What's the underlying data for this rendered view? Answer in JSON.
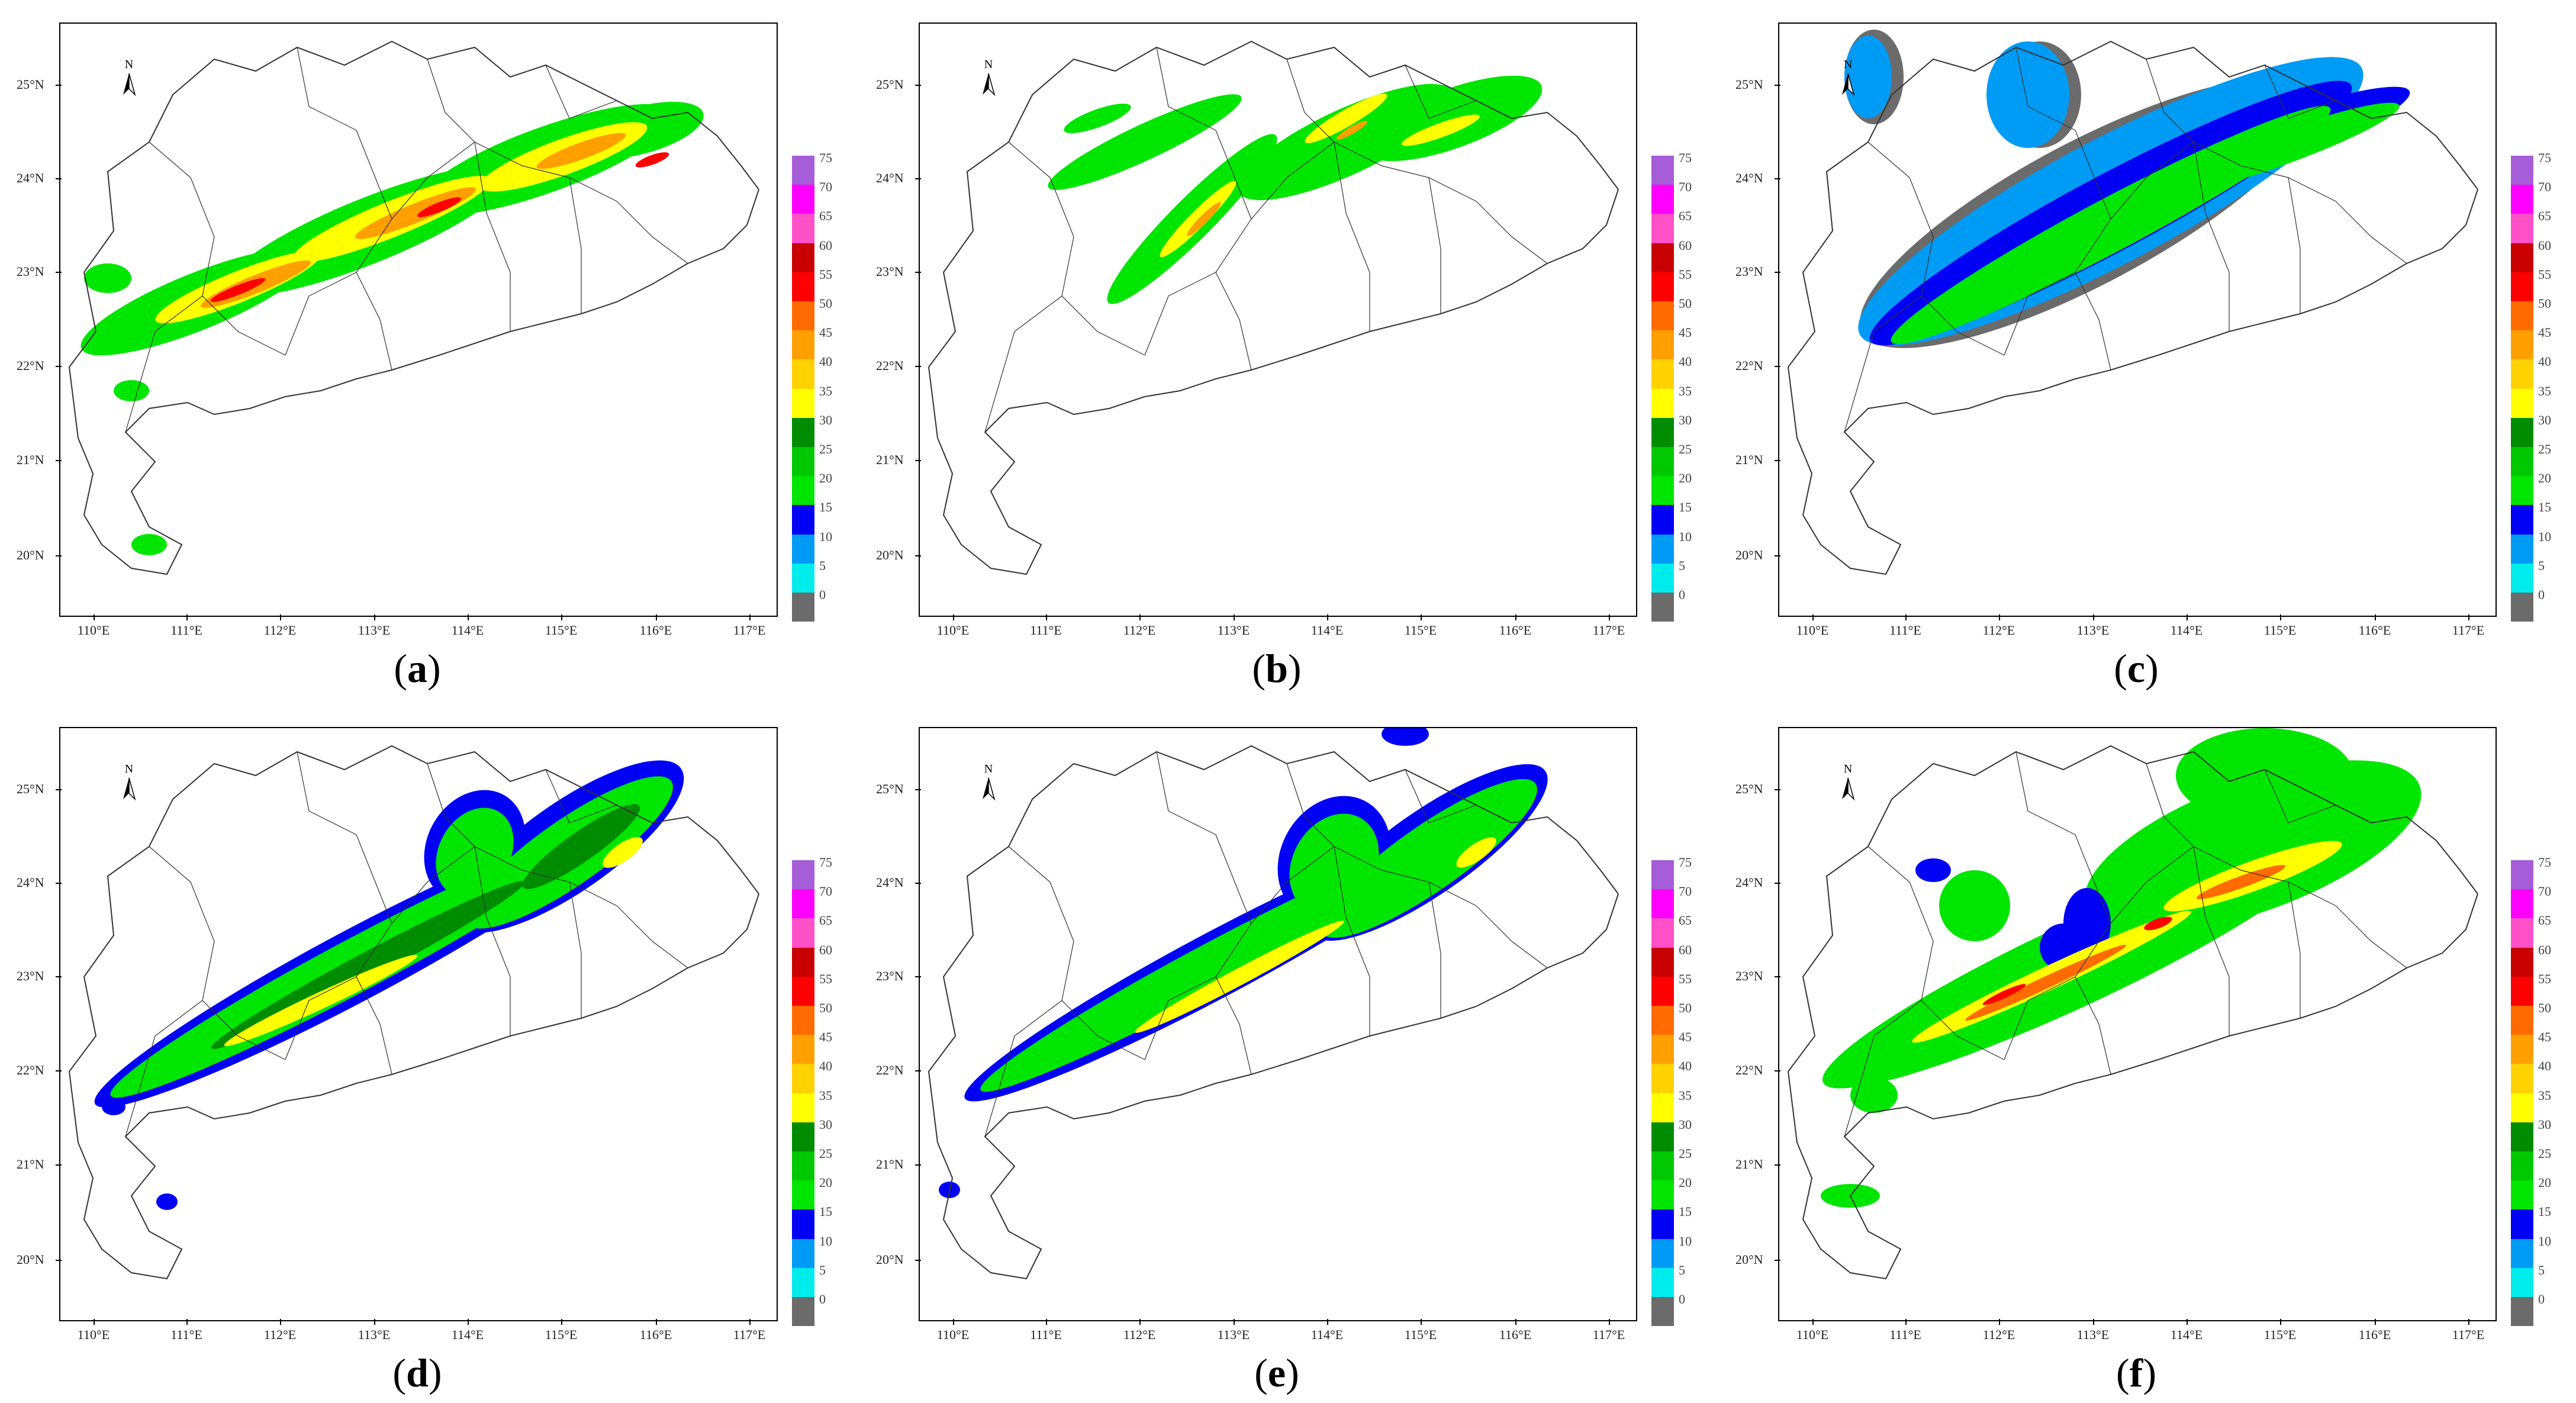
{
  "panels": [
    {
      "id": "a",
      "caption": "a"
    },
    {
      "id": "b",
      "caption": "b"
    },
    {
      "id": "c",
      "caption": "c"
    },
    {
      "id": "d",
      "caption": "d"
    },
    {
      "id": "e",
      "caption": "e"
    },
    {
      "id": "f",
      "caption": "f"
    }
  ],
  "latitude_labels": [
    "25°N",
    "24°N",
    "23°N",
    "22°N",
    "21°N",
    "20°N"
  ],
  "longitude_labels": [
    "110°E",
    "111°E",
    "112°E",
    "113°E",
    "114°E",
    "115°E",
    "116°E",
    "117°E"
  ],
  "north_arrow": {
    "label": "N",
    "icon": "north-arrow-icon"
  },
  "legend": {
    "labels": [
      "75",
      "70",
      "65",
      "60",
      "55",
      "50",
      "45",
      "40",
      "35",
      "30",
      "25",
      "20",
      "15",
      "10",
      "5",
      "0"
    ],
    "colors": [
      "#a55ed7",
      "#ff00ff",
      "#ff50c8",
      "#c80000",
      "#ff0000",
      "#ff6b00",
      "#ff9f00",
      "#ffd200",
      "#ffff00",
      "#008c00",
      "#00c800",
      "#00e600",
      "#0000f5",
      "#009bf5",
      "#00ecec",
      "#6b6b6b"
    ]
  }
}
